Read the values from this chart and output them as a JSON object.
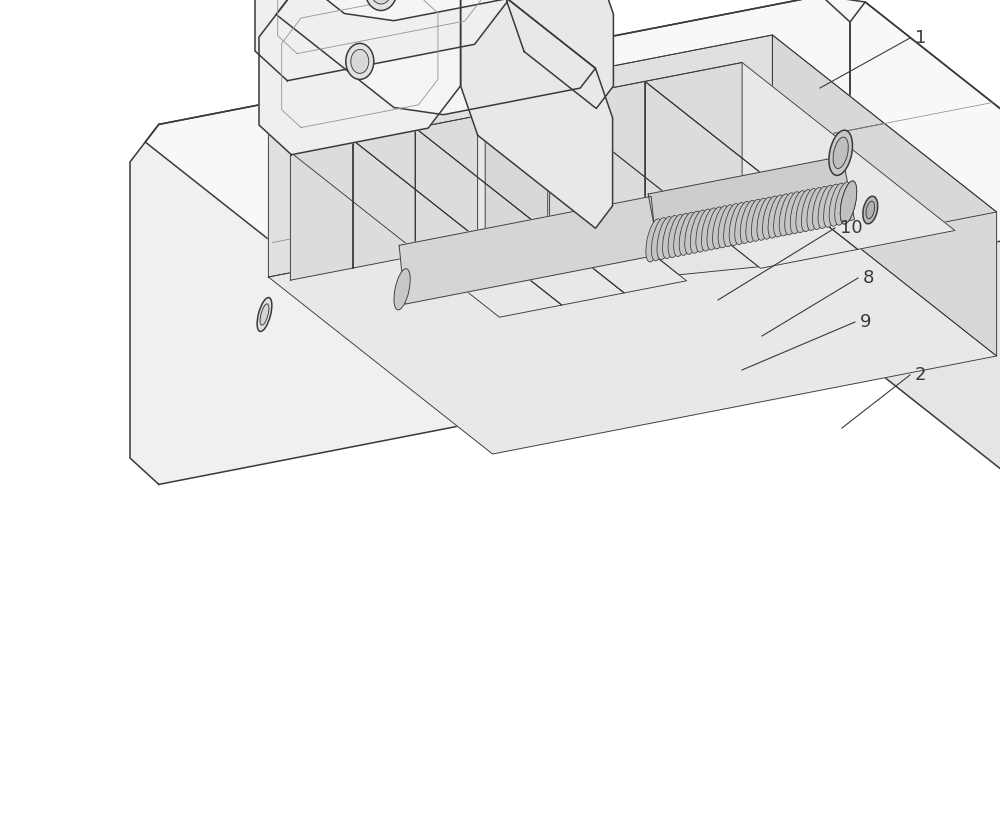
{
  "bg_color": "#ffffff",
  "line_color": "#3a3a3a",
  "lw": 1.1,
  "tlw": 0.65,
  "label_color": "#3a3a3a",
  "label_fs": 13,
  "figsize": [
    10.0,
    8.36
  ]
}
